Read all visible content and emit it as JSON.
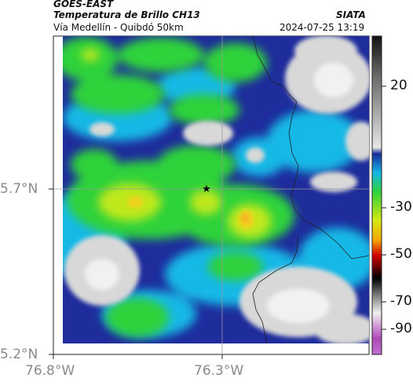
{
  "header": {
    "satellite": "GOES-EAST",
    "product": "Temperatura de Brillo CH13",
    "region": "Vía Medellín - Quibdó 50km",
    "organization": "SIATA",
    "timestamp": "2024-07-25 13:19"
  },
  "axes": {
    "lat_ticks": [
      "5.7°N",
      "5.2°N"
    ],
    "lon_ticks": [
      "76.8°W",
      "76.3°W"
    ]
  },
  "colorbar": {
    "ticks": [
      "20",
      "-30",
      "-50",
      "-70",
      "-90"
    ]
  },
  "colors": {
    "very_cold": "#d6e812",
    "cold_green": "#2fd23a",
    "deep_blue": "#1e2c9c",
    "cyan": "#12b8e6",
    "clear_sky": "#d8d8d8",
    "hottest_core": "#f2b020"
  }
}
